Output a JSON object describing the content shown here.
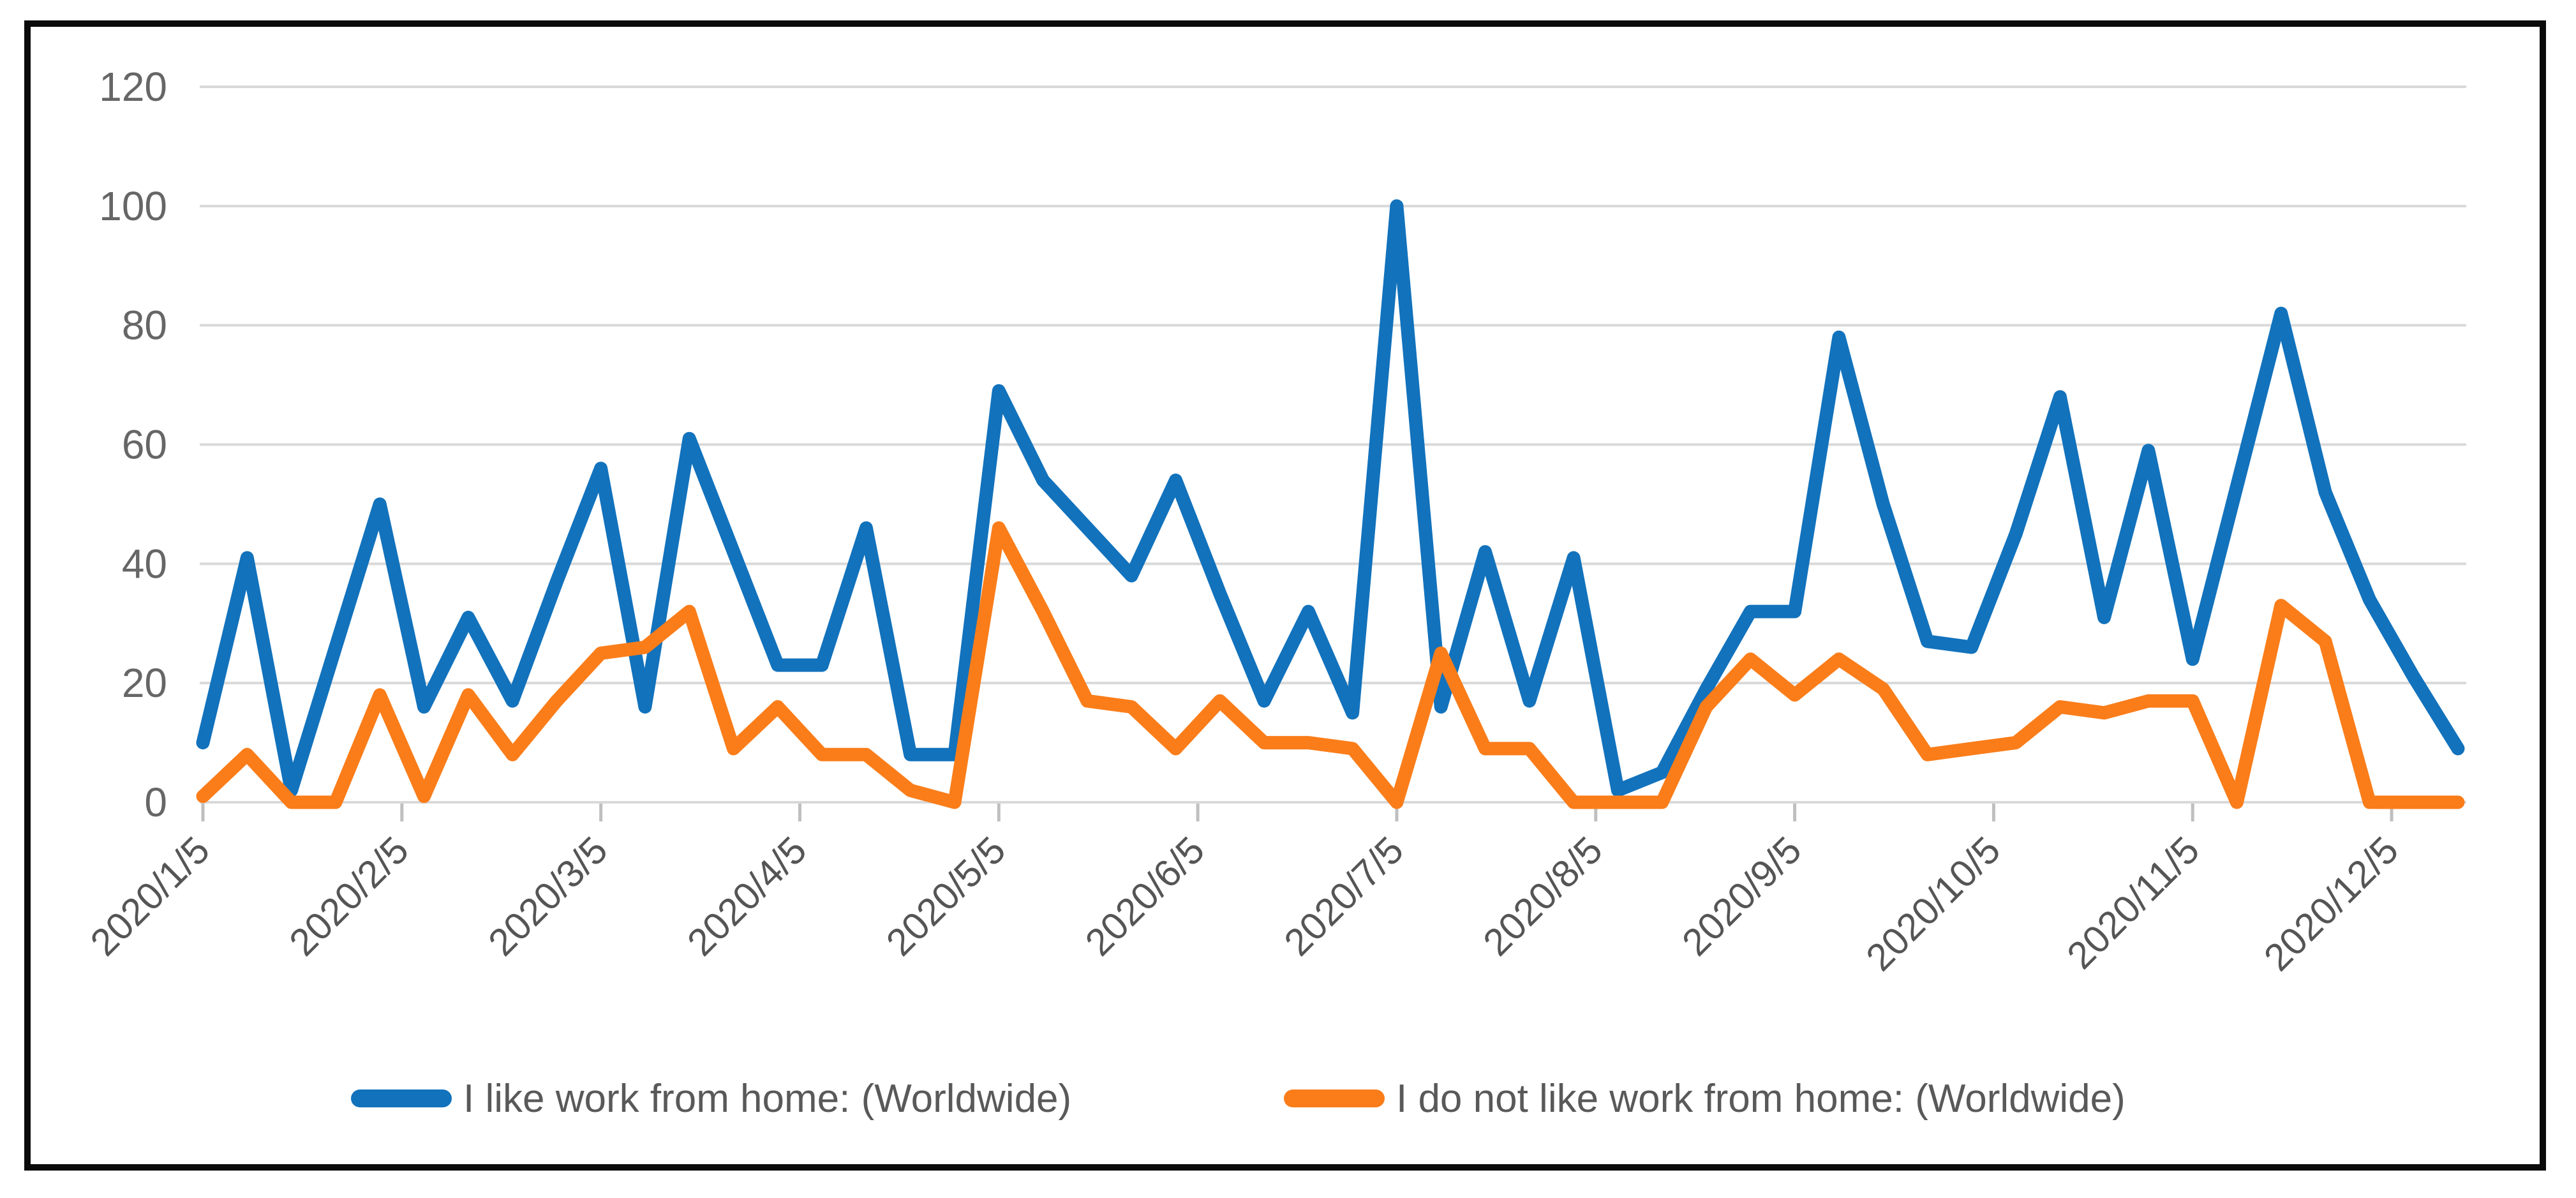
{
  "chart_data": {
    "type": "line",
    "title": "",
    "x_labels": [
      "2020/1/5",
      "2020/2/5",
      "2020/3/5",
      "2020/4/5",
      "2020/5/5",
      "2020/6/5",
      "2020/7/5",
      "2020/8/5",
      "2020/9/5",
      "2020/10/5",
      "2020/11/5",
      "2020/12/5"
    ],
    "x_label_every_n_points": 4.5,
    "points_per_series": 52,
    "y_ticks": [
      0,
      20,
      40,
      60,
      80,
      100,
      120
    ],
    "ylim": [
      0,
      120
    ],
    "grid": true,
    "grid_color": "#d9d9d9",
    "tick_color": "#bfbfbf",
    "axis_text_color": "#666666",
    "x_label_color": "#555555",
    "legend_position": "bottom",
    "legend_text_color": "#595959",
    "series": [
      {
        "name": "I like work from home: (Worldwide)",
        "color": "#1272bc",
        "values": [
          10,
          41,
          2,
          26,
          50,
          16,
          31,
          17,
          37,
          56,
          16,
          61,
          42,
          23,
          23,
          46,
          8,
          8,
          69,
          54,
          46,
          38,
          54,
          35,
          17,
          32,
          15,
          100,
          16,
          42,
          17,
          41,
          2,
          5,
          19,
          32,
          32,
          78,
          50,
          27,
          26,
          45,
          68,
          31,
          59,
          24,
          53,
          82,
          52,
          34,
          21,
          9
        ]
      },
      {
        "name": "I do not like work from home: (Worldwide)",
        "color": "#fa7d1a",
        "values": [
          1,
          8,
          0,
          0,
          18,
          1,
          18,
          8,
          17,
          25,
          26,
          32,
          9,
          16,
          8,
          8,
          2,
          0,
          46,
          32,
          17,
          16,
          9,
          17,
          10,
          10,
          9,
          0,
          25,
          9,
          9,
          0,
          0,
          0,
          16,
          24,
          18,
          24,
          19,
          8,
          9,
          10,
          16,
          15,
          17,
          17,
          0,
          33,
          27,
          0,
          0,
          0
        ]
      }
    ]
  }
}
